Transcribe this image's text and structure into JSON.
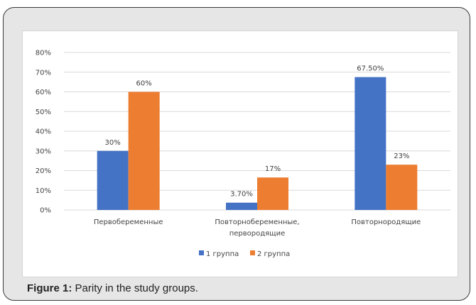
{
  "caption": {
    "label": "Figure 1:",
    "text": "Parity in the study groups."
  },
  "chart_data": {
    "type": "bar",
    "categories": [
      [
        "Первобеременные"
      ],
      [
        "Повторнобеременные,",
        "первородящие"
      ],
      [
        "Повторнородящие"
      ]
    ],
    "series": [
      {
        "name": "1 группа",
        "color": "#4472c4",
        "values": [
          30,
          3.7,
          67.5
        ],
        "labels": [
          "30%",
          "3.70%",
          "67.50%"
        ]
      },
      {
        "name": "2 группа",
        "color": "#ed7d31",
        "values": [
          60,
          16.5,
          23
        ],
        "labels": [
          "60%",
          "17%",
          "23%"
        ]
      }
    ],
    "ylim": [
      0,
      80
    ],
    "yticks": [
      0,
      10,
      20,
      30,
      40,
      50,
      60,
      70,
      80
    ],
    "ytick_labels": [
      "0%",
      "10%",
      "20%",
      "30%",
      "40%",
      "50%",
      "60%",
      "70%",
      "80%"
    ],
    "grid": true,
    "legend_position": "bottom"
  }
}
